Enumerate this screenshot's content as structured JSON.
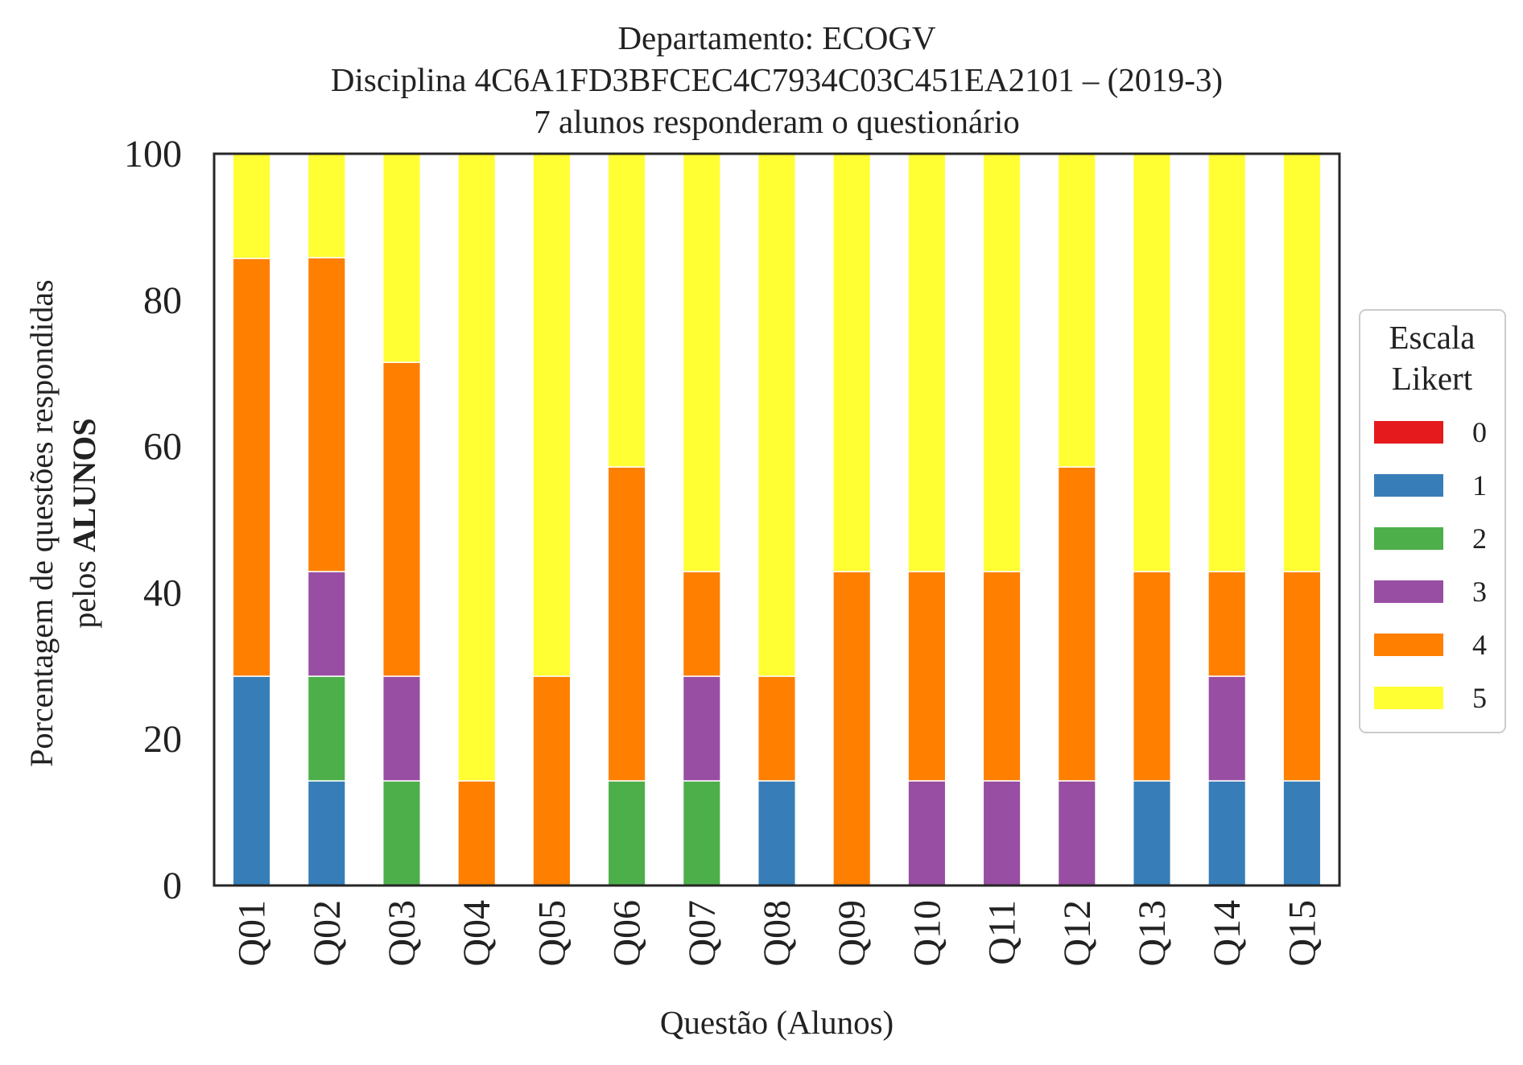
{
  "chart_data": {
    "type": "bar",
    "stacked": true,
    "title_lines": [
      "Departamento: ECOGV",
      "Disciplina 4C6A1FD3BFCEC4C7934C03C451EA2101 – (2019-3)",
      "7 alunos responderam o questionário"
    ],
    "xlabel": "Questão (Alunos)",
    "ylabel_line1": "Porcentagem de questões respondidas",
    "ylabel_line2_prefix": "pelos ",
    "ylabel_line2_bold": "ALUNOS",
    "ylim": [
      0,
      100
    ],
    "yticks": [
      "0",
      "20",
      "40",
      "60",
      "80",
      "100"
    ],
    "grid": false,
    "legend": {
      "title_line1": "Escala",
      "title_line2": "Likert",
      "placement": "center-right outside"
    },
    "categories": [
      "Q01",
      "Q02",
      "Q03",
      "Q04",
      "Q05",
      "Q06",
      "Q07",
      "Q08",
      "Q09",
      "Q10",
      "Q11",
      "Q12",
      "Q13",
      "Q14",
      "Q15"
    ],
    "series": [
      {
        "name": "0",
        "color": "#e41a1c",
        "values": [
          0,
          0,
          0,
          0,
          0,
          0,
          0,
          0,
          0,
          0,
          0,
          0,
          0,
          0,
          0
        ]
      },
      {
        "name": "1",
        "color": "#377eb8",
        "values": [
          28.6,
          14.3,
          0,
          0,
          0,
          0,
          0,
          14.3,
          0,
          0,
          0,
          0,
          14.3,
          14.3,
          14.3
        ]
      },
      {
        "name": "2",
        "color": "#4daf4a",
        "values": [
          0,
          14.3,
          14.3,
          0,
          0,
          14.3,
          14.3,
          0,
          0,
          0,
          0,
          0,
          0,
          0,
          0
        ]
      },
      {
        "name": "3",
        "color": "#984ea3",
        "values": [
          0,
          14.3,
          14.3,
          0,
          0,
          0,
          14.3,
          0,
          0,
          14.3,
          14.3,
          14.3,
          0,
          14.3,
          0
        ]
      },
      {
        "name": "4",
        "color": "#ff7f00",
        "values": [
          57.1,
          42.9,
          42.9,
          14.3,
          28.6,
          42.9,
          14.3,
          14.3,
          42.9,
          28.6,
          28.6,
          42.9,
          28.6,
          14.3,
          28.6
        ]
      },
      {
        "name": "5",
        "color": "#ffff33",
        "values": [
          14.3,
          14.3,
          28.6,
          85.7,
          71.4,
          42.9,
          57.1,
          71.4,
          57.1,
          57.1,
          57.1,
          42.9,
          57.1,
          57.1,
          57.1
        ]
      }
    ]
  }
}
